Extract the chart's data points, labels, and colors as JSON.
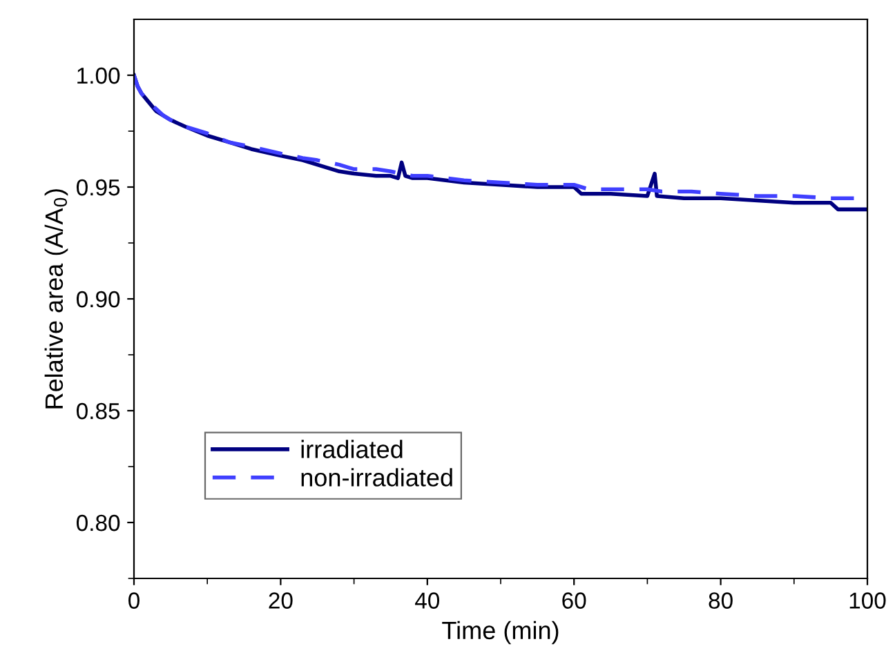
{
  "chart_data": {
    "type": "line",
    "xlabel": "Time (min)",
    "ylabel": "Relative area (A/A$_{0}$)",
    "xlim": [
      0,
      100
    ],
    "xticks": [
      0,
      20,
      40,
      60,
      80,
      100
    ],
    "ylim": [
      0.775,
      1.025
    ],
    "yticks": [
      {
        "value": 0.8,
        "label": "0.80"
      },
      {
        "value": 0.85,
        "label": "0.85"
      },
      {
        "value": 0.9,
        "label": "0.90"
      },
      {
        "value": 0.95,
        "label": "0.95"
      },
      {
        "value": 1.0,
        "label": "1.00"
      }
    ],
    "grid": false,
    "legend": "bottom left",
    "series": [
      {
        "name": "irradiated",
        "color": "#000080",
        "line_style": "solid",
        "x": [
          0,
          0.5,
          1,
          2,
          3,
          4,
          5,
          7,
          10,
          13,
          16,
          20,
          23,
          25,
          28,
          30,
          33,
          35,
          36,
          36.5,
          37,
          38,
          40,
          45,
          50,
          55,
          60,
          61,
          65,
          70,
          71,
          71.3,
          75,
          80,
          85,
          90,
          95,
          96,
          100
        ],
        "values": [
          1.0,
          0.995,
          0.992,
          0.988,
          0.984,
          0.982,
          0.98,
          0.977,
          0.973,
          0.97,
          0.967,
          0.964,
          0.962,
          0.96,
          0.957,
          0.956,
          0.955,
          0.955,
          0.954,
          0.961,
          0.955,
          0.954,
          0.954,
          0.952,
          0.951,
          0.95,
          0.95,
          0.947,
          0.947,
          0.946,
          0.956,
          0.946,
          0.945,
          0.945,
          0.944,
          0.943,
          0.943,
          0.94,
          0.94
        ]
      },
      {
        "name": "non-irradiated",
        "color": "#4040ff",
        "line_style": "dashed",
        "x": [
          0,
          0.5,
          1,
          2,
          3,
          4,
          5,
          7,
          10,
          13,
          16,
          20,
          23,
          25,
          28,
          30,
          33,
          35,
          38,
          40,
          45,
          50,
          55,
          60,
          62,
          66,
          70,
          72,
          76,
          80,
          85,
          90,
          95,
          100
        ],
        "values": [
          1.0,
          0.995,
          0.992,
          0.988,
          0.985,
          0.982,
          0.98,
          0.977,
          0.974,
          0.97,
          0.968,
          0.965,
          0.963,
          0.962,
          0.96,
          0.958,
          0.958,
          0.957,
          0.955,
          0.955,
          0.953,
          0.952,
          0.951,
          0.951,
          0.949,
          0.949,
          0.949,
          0.948,
          0.948,
          0.947,
          0.946,
          0.946,
          0.945,
          0.945
        ]
      }
    ]
  }
}
